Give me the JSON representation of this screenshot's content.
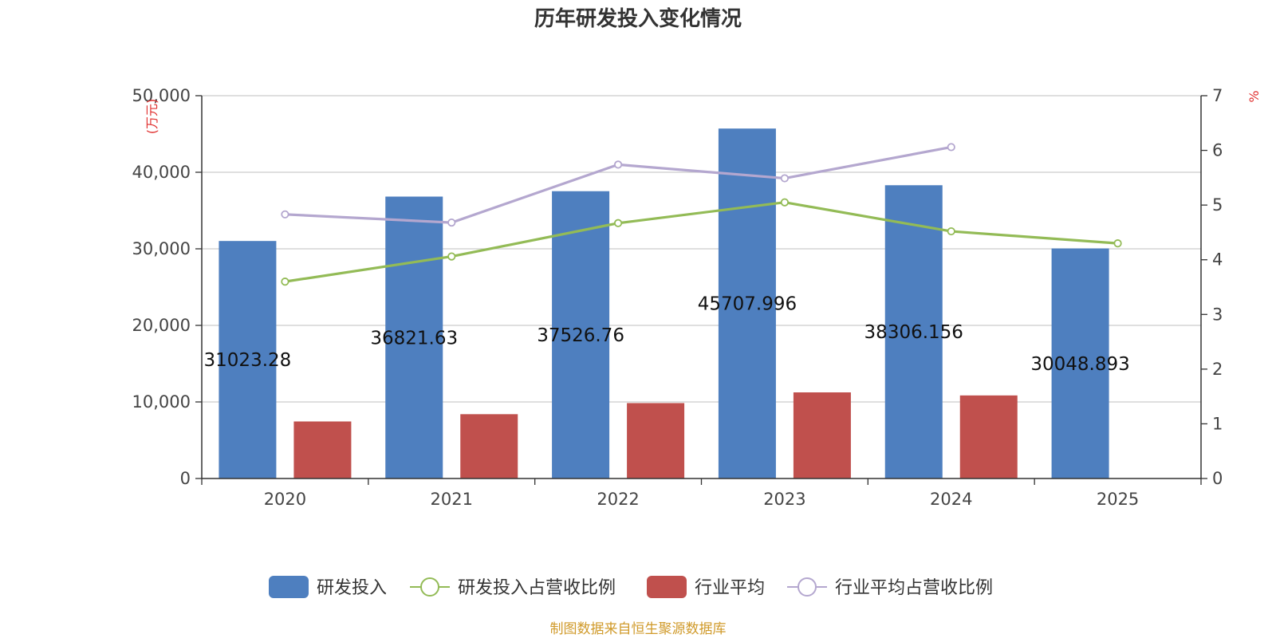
{
  "chart_data": {
    "type": "bar",
    "title": "历年研发投入变化情况",
    "categories": [
      "2020",
      "2021",
      "2022",
      "2023",
      "2024",
      "2025"
    ],
    "y_left": {
      "unit_label": "(万元)",
      "ylim": [
        0,
        50000
      ],
      "ticks": [
        "0",
        "10,000",
        "20,000",
        "30,000",
        "40,000",
        "50,000"
      ]
    },
    "y_right": {
      "unit_label": "%",
      "ylim": [
        0,
        7
      ],
      "ticks": [
        "0",
        "1",
        "2",
        "3",
        "4",
        "5",
        "6",
        "7"
      ]
    },
    "grid": true,
    "legend_position": "bottom",
    "series": [
      {
        "name": "研发投入",
        "kind": "bar",
        "axis": "left",
        "color": "#4e7fbf",
        "values": [
          31023.28,
          36821.63,
          37526.76,
          45707.996,
          38306.156,
          30048.893
        ],
        "labels": [
          "31023.28",
          "36821.63",
          "37526.76",
          "45707.996",
          "38306.156",
          "30048.893"
        ]
      },
      {
        "name": "研发投入占营收比例",
        "kind": "line",
        "axis": "right",
        "color": "#93bb56",
        "values": [
          3.6,
          4.06,
          4.67,
          5.05,
          4.52,
          4.3
        ]
      },
      {
        "name": "行业平均",
        "kind": "bar",
        "axis": "left",
        "color": "#c0504d",
        "values": [
          7450,
          8400,
          9850,
          11250,
          10850,
          null
        ]
      },
      {
        "name": "行业平均占营收比例",
        "kind": "line",
        "axis": "right",
        "color": "#b4a7cf",
        "values": [
          4.83,
          4.68,
          5.74,
          5.49,
          6.06,
          null
        ]
      }
    ],
    "source": "制图数据来自恒生聚源数据库"
  }
}
